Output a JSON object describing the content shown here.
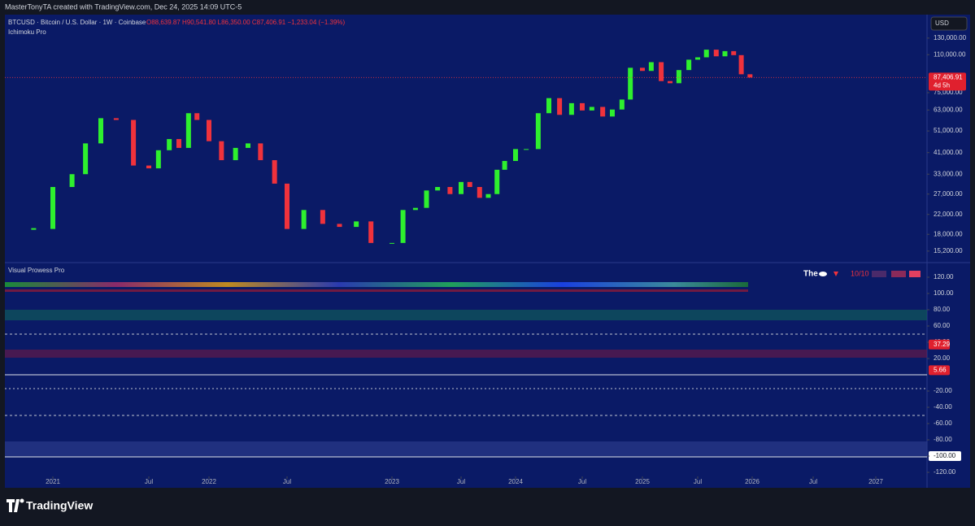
{
  "header": {
    "credit": "MasterTonyTA created with TradingView.com, Dec 24, 2025 14:09 UTC-5"
  },
  "chart_data": [
    {
      "type": "candlestick",
      "title": "BTCUSD · Bitcoin / U.S. Dollar · 1W · Coinbase",
      "ohlc": "O88,639.87 H90,541.80 L86,350.00 C87,406.91 −1,233.04 (−1.39%)",
      "indicator": "Ichimoku Pro",
      "currency": "USD",
      "log_scale": true,
      "up_color": "#2ef02e",
      "down_color": "#f0323c",
      "x": [
        2020.9,
        2021.0,
        2021.1,
        2021.17,
        2021.25,
        2021.33,
        2021.42,
        2021.5,
        2021.58,
        2021.67,
        2021.75,
        2021.83,
        2021.9,
        2022.0,
        2022.08,
        2022.17,
        2022.25,
        2022.33,
        2022.42,
        2022.5,
        2022.58,
        2022.67,
        2022.75,
        2022.83,
        2022.9,
        2023.0,
        2023.08,
        2023.17,
        2023.25,
        2023.33,
        2023.42,
        2023.5,
        2023.58,
        2023.67,
        2023.75,
        2023.83,
        2023.9,
        2024.0,
        2024.08,
        2024.17,
        2024.25,
        2024.33,
        2024.42,
        2024.5,
        2024.58,
        2024.67,
        2024.75,
        2024.83,
        2024.9,
        2025.0,
        2025.08,
        2025.17,
        2025.25,
        2025.33,
        2025.42,
        2025.5,
        2025.58,
        2025.67,
        2025.75,
        2025.83,
        2025.9,
        2025.98
      ],
      "values": [
        19000,
        29000,
        33000,
        45000,
        58000,
        57000,
        36000,
        35000,
        42000,
        47000,
        43000,
        61000,
        57000,
        46000,
        38000,
        43000,
        45000,
        38000,
        30000,
        19000,
        23000,
        20000,
        19400,
        20500,
        16500,
        16500,
        23000,
        23500,
        28000,
        29000,
        27000,
        30500,
        29000,
        26000,
        27000,
        34500,
        37700,
        42500,
        42500,
        61000,
        71000,
        60000,
        67500,
        62700,
        65000,
        59000,
        63300,
        70000,
        96400,
        93400,
        102000,
        84300,
        82500,
        94200,
        104600,
        107100,
        115700,
        108200,
        114000,
        109500,
        90300,
        87406.91
      ],
      "ylim": [
        13650,
        162000
      ],
      "yticks": [
        {
          "value": 130000,
          "label": "130,000.00"
        },
        {
          "value": 110000,
          "label": "110,000.00"
        },
        {
          "value": 75000,
          "label": "75,000.00"
        },
        {
          "value": 63000,
          "label": "63,000.00"
        },
        {
          "value": 51000,
          "label": "51,000.00"
        },
        {
          "value": 41000,
          "label": "41,000.00"
        },
        {
          "value": 33000,
          "label": "33,000.00"
        },
        {
          "value": 27000,
          "label": "27,000.00"
        },
        {
          "value": 22000,
          "label": "22,000.00"
        },
        {
          "value": 18000,
          "label": "18,000.00"
        },
        {
          "value": 15200,
          "label": "15,200.00"
        }
      ],
      "last_price": {
        "value": 87406.91,
        "label": "87,406.91"
      },
      "countdown": "4d 5h",
      "xticks": [
        {
          "value": 2021,
          "label": "2021"
        },
        {
          "value": 2021.5,
          "label": "Jul"
        },
        {
          "value": 2022,
          "label": "2022"
        },
        {
          "value": 2022.5,
          "label": "Jul"
        },
        {
          "value": 2023,
          "label": "2023"
        },
        {
          "value": 2023.5,
          "label": "Jul"
        },
        {
          "value": 2024,
          "label": "2024"
        },
        {
          "value": 2024.5,
          "label": "Jul"
        },
        {
          "value": 2025,
          "label": "2025"
        },
        {
          "value": 2025.5,
          "label": "Jul"
        },
        {
          "value": 2026,
          "label": "2026"
        },
        {
          "value": 2026.5,
          "label": "Jul"
        },
        {
          "value": 2027,
          "label": "2027"
        }
      ]
    },
    {
      "type": "oscillator",
      "title": "Visual Prowess Pro",
      "legend_text": "The",
      "score": "10/10",
      "ylim": [
        -124,
        136
      ],
      "yticks": [
        {
          "value": 120,
          "label": "120.00"
        },
        {
          "value": 100,
          "label": "100.00"
        },
        {
          "value": 80,
          "label": "80.00"
        },
        {
          "value": 60,
          "label": "60.00"
        },
        {
          "value": 40,
          "label": "40.00"
        },
        {
          "value": 20,
          "label": "20.00"
        },
        {
          "value": -20,
          "label": "-20.00"
        },
        {
          "value": -40,
          "label": "-40.00"
        },
        {
          "value": -60,
          "label": "-60.00"
        },
        {
          "value": -80,
          "label": "-80.00"
        },
        {
          "value": -100,
          "label": "-100.00"
        },
        {
          "value": -120,
          "label": "-120.00"
        }
      ],
      "badges": [
        {
          "value": 37.29,
          "label": "37.29"
        },
        {
          "value": 5.66,
          "label": "5.66"
        }
      ]
    }
  ],
  "footer": {
    "brand": "TradingView"
  }
}
